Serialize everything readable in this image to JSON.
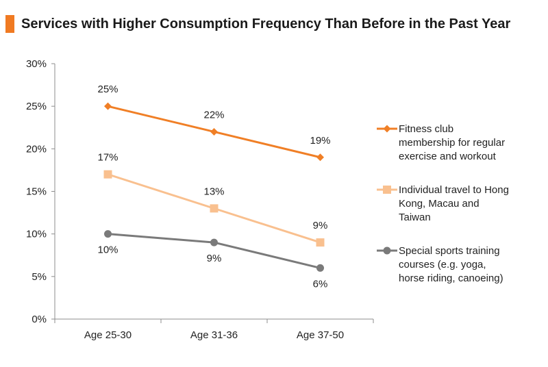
{
  "header": {
    "title": "Services with Higher Consumption Frequency Than Before in the Past Year",
    "accent_color": "#f07a22"
  },
  "chart_data": {
    "type": "line",
    "title": "Services with Higher Consumption Frequency Than Before in the Past Year",
    "xlabel": "",
    "ylabel": "",
    "categories": [
      "Age 25-30",
      "Age 31-36",
      "Age 37-50"
    ],
    "ylim": [
      0,
      30
    ],
    "yticks": [
      0,
      5,
      10,
      15,
      20,
      25,
      30
    ],
    "ytick_labels": [
      "0%",
      "5%",
      "10%",
      "15%",
      "20%",
      "25%",
      "30%"
    ],
    "grid": false,
    "legend_position": "right",
    "series": [
      {
        "name": "Fitness club membership for regular exercise and workout",
        "legend_lines": [
          "Fitness club",
          "membership for regular",
          "exercise and workout"
        ],
        "values": [
          25,
          22,
          19
        ],
        "labels": [
          "25%",
          "22%",
          "19%"
        ],
        "color": "#f07f26",
        "marker": "diamond",
        "label_side": "above"
      },
      {
        "name": "Individual travel to Hong Kong, Macau and Taiwan",
        "legend_lines": [
          "Individual travel to Hong",
          "Kong, Macau and",
          "Taiwan"
        ],
        "values": [
          17,
          13,
          9
        ],
        "labels": [
          "17%",
          "13%",
          "9%"
        ],
        "color": "#f9c08f",
        "marker": "square",
        "label_side": "above"
      },
      {
        "name": "Special sports training courses (e.g. yoga, horse riding, canoeing)",
        "legend_lines": [
          "Special sports training",
          "courses (e.g. yoga,",
          "horse riding, canoeing)"
        ],
        "values": [
          10,
          9,
          6
        ],
        "labels": [
          "10%",
          "9%",
          "6%"
        ],
        "color": "#7a7a7a",
        "marker": "circle",
        "label_side": "below"
      }
    ]
  }
}
